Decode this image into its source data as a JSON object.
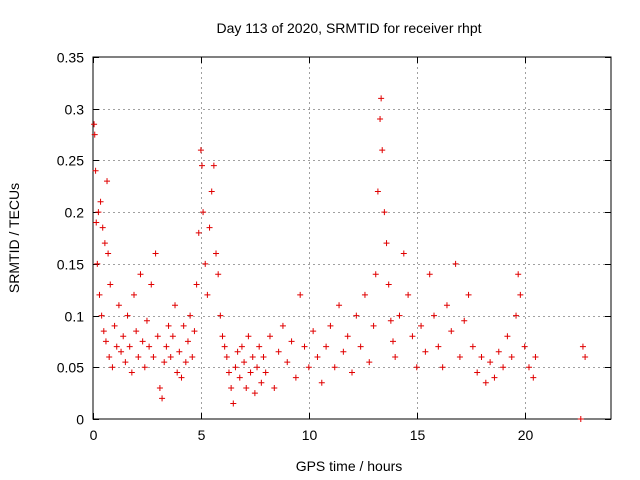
{
  "chart_data": {
    "type": "scatter",
    "title": "Day 113 of 2020, SRMTID for receiver rhpt",
    "xlabel": "GPS time / hours",
    "ylabel": "SRMTID / TECUs",
    "xlim": [
      0,
      24
    ],
    "ylim": [
      0,
      0.35
    ],
    "xticks": [
      0,
      5,
      10,
      15,
      20
    ],
    "xtick_labels": [
      "0",
      "5",
      "10",
      "15",
      "20"
    ],
    "yticks": [
      0,
      0.05,
      0.1,
      0.15,
      0.2,
      0.25,
      0.3,
      0.35
    ],
    "ytick_labels": [
      "0",
      "0.05",
      "0.1",
      "0.15",
      "0.2",
      "0.25",
      "0.3",
      "0.35"
    ],
    "grid": true,
    "marker": "+",
    "color": "#e00000",
    "series": [
      {
        "name": "SRMTID",
        "points": [
          [
            0.05,
            0.285
          ],
          [
            0.08,
            0.275
          ],
          [
            0.12,
            0.24
          ],
          [
            0.15,
            0.19
          ],
          [
            0.2,
            0.15
          ],
          [
            0.25,
            0.2
          ],
          [
            0.3,
            0.12
          ],
          [
            0.35,
            0.21
          ],
          [
            0.4,
            0.1
          ],
          [
            0.45,
            0.185
          ],
          [
            0.5,
            0.085
          ],
          [
            0.55,
            0.17
          ],
          [
            0.6,
            0.075
          ],
          [
            0.65,
            0.23
          ],
          [
            0.7,
            0.16
          ],
          [
            0.75,
            0.06
          ],
          [
            0.8,
            0.13
          ],
          [
            0.9,
            0.05
          ],
          [
            1.0,
            0.09
          ],
          [
            1.1,
            0.07
          ],
          [
            1.2,
            0.11
          ],
          [
            1.3,
            0.065
          ],
          [
            1.4,
            0.08
          ],
          [
            1.5,
            0.055
          ],
          [
            1.6,
            0.1
          ],
          [
            1.7,
            0.07
          ],
          [
            1.8,
            0.045
          ],
          [
            1.9,
            0.12
          ],
          [
            2.0,
            0.085
          ],
          [
            2.1,
            0.06
          ],
          [
            2.2,
            0.14
          ],
          [
            2.3,
            0.075
          ],
          [
            2.4,
            0.05
          ],
          [
            2.5,
            0.095
          ],
          [
            2.6,
            0.07
          ],
          [
            2.7,
            0.13
          ],
          [
            2.8,
            0.06
          ],
          [
            2.9,
            0.16
          ],
          [
            3.0,
            0.08
          ],
          [
            3.1,
            0.03
          ],
          [
            3.2,
            0.02
          ],
          [
            3.3,
            0.055
          ],
          [
            3.4,
            0.07
          ],
          [
            3.5,
            0.09
          ],
          [
            3.6,
            0.06
          ],
          [
            3.7,
            0.08
          ],
          [
            3.8,
            0.11
          ],
          [
            3.9,
            0.045
          ],
          [
            4.0,
            0.065
          ],
          [
            4.1,
            0.04
          ],
          [
            4.2,
            0.09
          ],
          [
            4.3,
            0.055
          ],
          [
            4.4,
            0.075
          ],
          [
            4.5,
            0.1
          ],
          [
            4.6,
            0.06
          ],
          [
            4.7,
            0.085
          ],
          [
            4.8,
            0.13
          ],
          [
            4.9,
            0.18
          ],
          [
            5.0,
            0.26
          ],
          [
            5.05,
            0.245
          ],
          [
            5.1,
            0.2
          ],
          [
            5.2,
            0.15
          ],
          [
            5.3,
            0.12
          ],
          [
            5.4,
            0.185
          ],
          [
            5.5,
            0.22
          ],
          [
            5.6,
            0.245
          ],
          [
            5.7,
            0.16
          ],
          [
            5.8,
            0.14
          ],
          [
            5.9,
            0.1
          ],
          [
            6.0,
            0.08
          ],
          [
            6.1,
            0.07
          ],
          [
            6.2,
            0.06
          ],
          [
            6.3,
            0.045
          ],
          [
            6.4,
            0.03
          ],
          [
            6.5,
            0.015
          ],
          [
            6.6,
            0.05
          ],
          [
            6.7,
            0.065
          ],
          [
            6.8,
            0.04
          ],
          [
            6.9,
            0.07
          ],
          [
            7.0,
            0.055
          ],
          [
            7.1,
            0.03
          ],
          [
            7.2,
            0.08
          ],
          [
            7.3,
            0.045
          ],
          [
            7.4,
            0.06
          ],
          [
            7.5,
            0.025
          ],
          [
            7.6,
            0.05
          ],
          [
            7.7,
            0.07
          ],
          [
            7.8,
            0.035
          ],
          [
            7.9,
            0.06
          ],
          [
            8.0,
            0.045
          ],
          [
            8.2,
            0.08
          ],
          [
            8.4,
            0.03
          ],
          [
            8.6,
            0.065
          ],
          [
            8.8,
            0.09
          ],
          [
            9.0,
            0.055
          ],
          [
            9.2,
            0.075
          ],
          [
            9.4,
            0.04
          ],
          [
            9.6,
            0.12
          ],
          [
            9.8,
            0.07
          ],
          [
            10.0,
            0.05
          ],
          [
            10.2,
            0.085
          ],
          [
            10.4,
            0.06
          ],
          [
            10.6,
            0.035
          ],
          [
            10.8,
            0.07
          ],
          [
            11.0,
            0.09
          ],
          [
            11.2,
            0.05
          ],
          [
            11.4,
            0.11
          ],
          [
            11.6,
            0.065
          ],
          [
            11.8,
            0.08
          ],
          [
            12.0,
            0.045
          ],
          [
            12.2,
            0.1
          ],
          [
            12.4,
            0.07
          ],
          [
            12.6,
            0.12
          ],
          [
            12.8,
            0.055
          ],
          [
            13.0,
            0.09
          ],
          [
            13.1,
            0.14
          ],
          [
            13.2,
            0.22
          ],
          [
            13.3,
            0.29
          ],
          [
            13.35,
            0.31
          ],
          [
            13.4,
            0.26
          ],
          [
            13.5,
            0.2
          ],
          [
            13.6,
            0.17
          ],
          [
            13.7,
            0.13
          ],
          [
            13.8,
            0.095
          ],
          [
            13.9,
            0.075
          ],
          [
            14.0,
            0.06
          ],
          [
            14.2,
            0.1
          ],
          [
            14.4,
            0.16
          ],
          [
            14.6,
            0.12
          ],
          [
            14.8,
            0.08
          ],
          [
            15.0,
            0.05
          ],
          [
            15.2,
            0.09
          ],
          [
            15.4,
            0.065
          ],
          [
            15.6,
            0.14
          ],
          [
            15.8,
            0.1
          ],
          [
            16.0,
            0.07
          ],
          [
            16.2,
            0.05
          ],
          [
            16.4,
            0.11
          ],
          [
            16.6,
            0.085
          ],
          [
            16.8,
            0.15
          ],
          [
            17.0,
            0.06
          ],
          [
            17.2,
            0.095
          ],
          [
            17.4,
            0.12
          ],
          [
            17.6,
            0.07
          ],
          [
            17.8,
            0.045
          ],
          [
            18.0,
            0.06
          ],
          [
            18.2,
            0.035
          ],
          [
            18.4,
            0.055
          ],
          [
            18.6,
            0.04
          ],
          [
            18.8,
            0.065
          ],
          [
            19.0,
            0.05
          ],
          [
            19.2,
            0.08
          ],
          [
            19.4,
            0.06
          ],
          [
            19.6,
            0.1
          ],
          [
            19.7,
            0.14
          ],
          [
            19.8,
            0.12
          ],
          [
            20.0,
            0.07
          ],
          [
            20.2,
            0.05
          ],
          [
            20.4,
            0.04
          ],
          [
            20.5,
            0.06
          ],
          [
            22.6,
            0.0
          ],
          [
            22.7,
            0.07
          ],
          [
            22.8,
            0.06
          ]
        ]
      }
    ]
  }
}
